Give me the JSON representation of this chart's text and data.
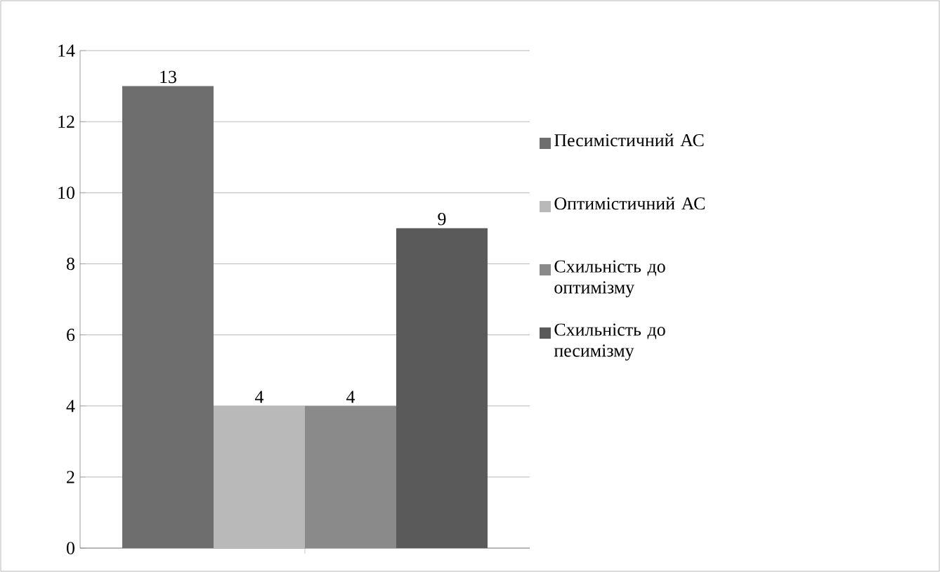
{
  "chart_data": {
    "type": "bar",
    "categories": [
      null
    ],
    "series": [
      {
        "name": "Песимістичний АС",
        "color": "#6e6e6e",
        "values": [
          13
        ]
      },
      {
        "name": "Оптимістичний АС",
        "color": "#b9b9b9",
        "values": [
          4
        ]
      },
      {
        "name": "Схильність до оптимізму",
        "color": "#8a8a8a",
        "values": [
          4
        ]
      },
      {
        "name": "Схильність до песимізму",
        "color": "#5a5a5a",
        "values": [
          9
        ]
      }
    ],
    "ylim": [
      0,
      14
    ],
    "yticks": [
      0,
      2,
      4,
      6,
      8,
      10,
      12,
      14
    ],
    "grid": "y",
    "legend": "right",
    "data_labels": true
  }
}
